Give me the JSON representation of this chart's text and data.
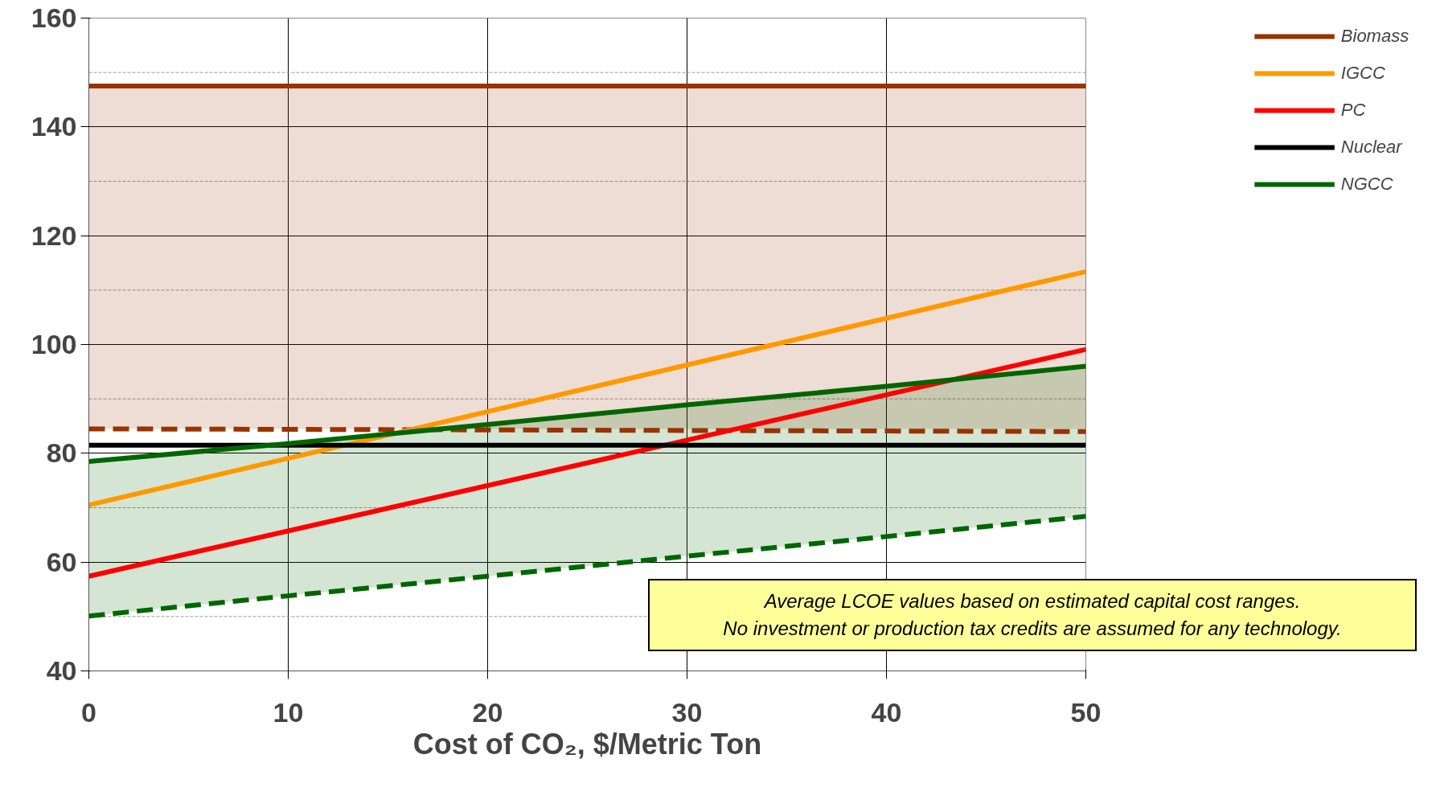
{
  "chart_data": {
    "type": "line",
    "xlabel": "Cost of CO₂, $/Metric Ton",
    "x": [
      0,
      50
    ],
    "xlim": [
      0,
      50
    ],
    "xticks": [
      0,
      10,
      20,
      30,
      40,
      50
    ],
    "ylim": [
      40,
      160
    ],
    "yticks": [
      40,
      {
        "value": 50,
        "label": null
      },
      60,
      {
        "value": 70,
        "label": null
      },
      80,
      {
        "value": 90,
        "label": null
      },
      100,
      {
        "value": 110,
        "label": null
      },
      120,
      {
        "value": 130,
        "label": null
      },
      140,
      {
        "value": 150,
        "label": null
      },
      160
    ],
    "grid": true,
    "legend": "right",
    "line_style": "solid",
    "marker": "none",
    "series": [
      {
        "name": "Biomass",
        "color": "#993300",
        "values": [
          147.5,
          147.5
        ],
        "lower": [
          84.5,
          84.5
        ],
        "upper": [
          147.5,
          147.5
        ]
      },
      {
        "color": "#993300",
        "values": [
          84.5,
          84.0
        ],
        "line_style": "dashed"
      },
      {
        "name": "IGCC",
        "color": "#ff9900",
        "values": [
          70.5,
          113.4
        ]
      },
      {
        "name": "PC",
        "color": "#ff0000",
        "values": [
          57.4,
          99.1
        ]
      },
      {
        "name": "Nuclear",
        "color": "#000000",
        "values": [
          81.5,
          81.5
        ]
      },
      {
        "name": "NGCC",
        "color": "#006600",
        "x": [
          0,
          10,
          20,
          30,
          40,
          50
        ],
        "values": [
          78.5,
          81.8,
          85.3,
          88.9,
          92.3,
          96.0
        ],
        "lower": [
          50.1,
          53.8,
          57.4,
          61.1,
          64.7,
          68.4
        ],
        "upper": [
          78.5,
          81.8,
          85.3,
          88.9,
          92.3,
          96.0
        ]
      },
      {
        "color": "#006600",
        "x": [
          0,
          10,
          20,
          30,
          40,
          50
        ],
        "values": [
          50.1,
          53.8,
          57.4,
          61.1,
          64.7,
          68.4
        ],
        "line_style": "dashed"
      }
    ],
    "annotations": [
      "Average LCOE values based on estimated capital cost ranges.",
      "No investment or production tax credits are assumed for any technology."
    ]
  }
}
